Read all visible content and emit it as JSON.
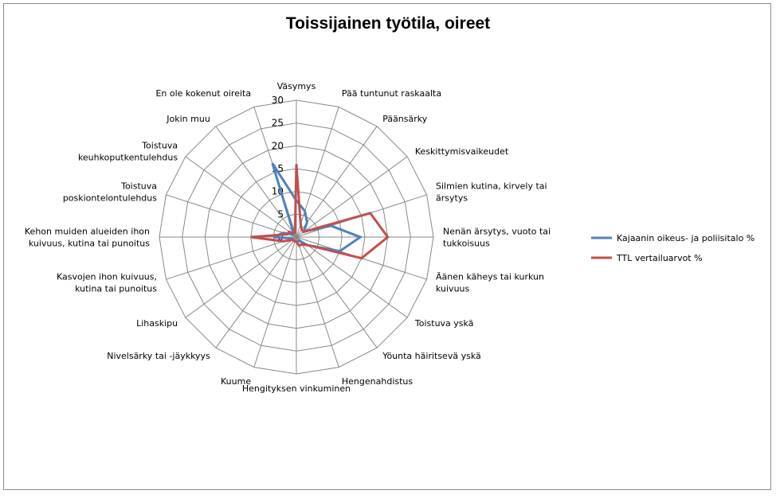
{
  "chart_data": {
    "type": "radar",
    "title": "Toissijainen työtila, oireet",
    "rmax": 30,
    "ticks": [
      "0",
      "5",
      "10",
      "15",
      "20",
      "25",
      "30"
    ],
    "grid": true,
    "legend_position": "right",
    "categories": [
      [
        "Väsymys"
      ],
      [
        "Pää tuntunut raskaalta"
      ],
      [
        "Päänsärky"
      ],
      [
        "Keskittymisvaikeudet"
      ],
      [
        "Silmien kutina, kirvely tai",
        "ärsytys"
      ],
      [
        "Nenän ärsytys, vuoto tai",
        "tukkoisuus"
      ],
      [
        "Äänen käheys tai kurkun",
        "kuivuus"
      ],
      [
        "Toistuva yskä"
      ],
      [
        "Yöunta häiritsevä yskä"
      ],
      [
        "Hengenahdistus"
      ],
      [
        "Hengityksen vinkuminen"
      ],
      [
        "Kuume"
      ],
      [
        "Nivelsärky tai -jäykkyys"
      ],
      [
        "Lihaskipu"
      ],
      [
        "Kasvojen ihon kuivuus,",
        "kutina tai punoitus"
      ],
      [
        "Kehon muiden alueiden ihon",
        "kuivuus, kutina tai punoitus"
      ],
      [
        "Toistuva",
        "poskiontelontulehdus"
      ],
      [
        "Toistuva",
        "keuhkoputkentulehdus"
      ],
      [
        "Jokin muu"
      ],
      [
        "En ole kokenut oireita"
      ]
    ],
    "series": [
      {
        "name": "Kajaanin oikeus- ja poliisitalo %",
        "color": "#4f81bd",
        "values": [
          8,
          6,
          4,
          2,
          8,
          14,
          10,
          3,
          1,
          1,
          1,
          1,
          1,
          1,
          1,
          5,
          3,
          1,
          1,
          17
        ]
      },
      {
        "name": "TTL vertailuarvot %",
        "color": "#c0504d",
        "values": [
          16,
          3,
          2,
          2,
          17,
          20,
          15,
          3,
          2,
          2,
          1,
          1,
          1,
          1,
          3,
          10,
          2,
          2,
          1,
          1
        ]
      }
    ]
  }
}
